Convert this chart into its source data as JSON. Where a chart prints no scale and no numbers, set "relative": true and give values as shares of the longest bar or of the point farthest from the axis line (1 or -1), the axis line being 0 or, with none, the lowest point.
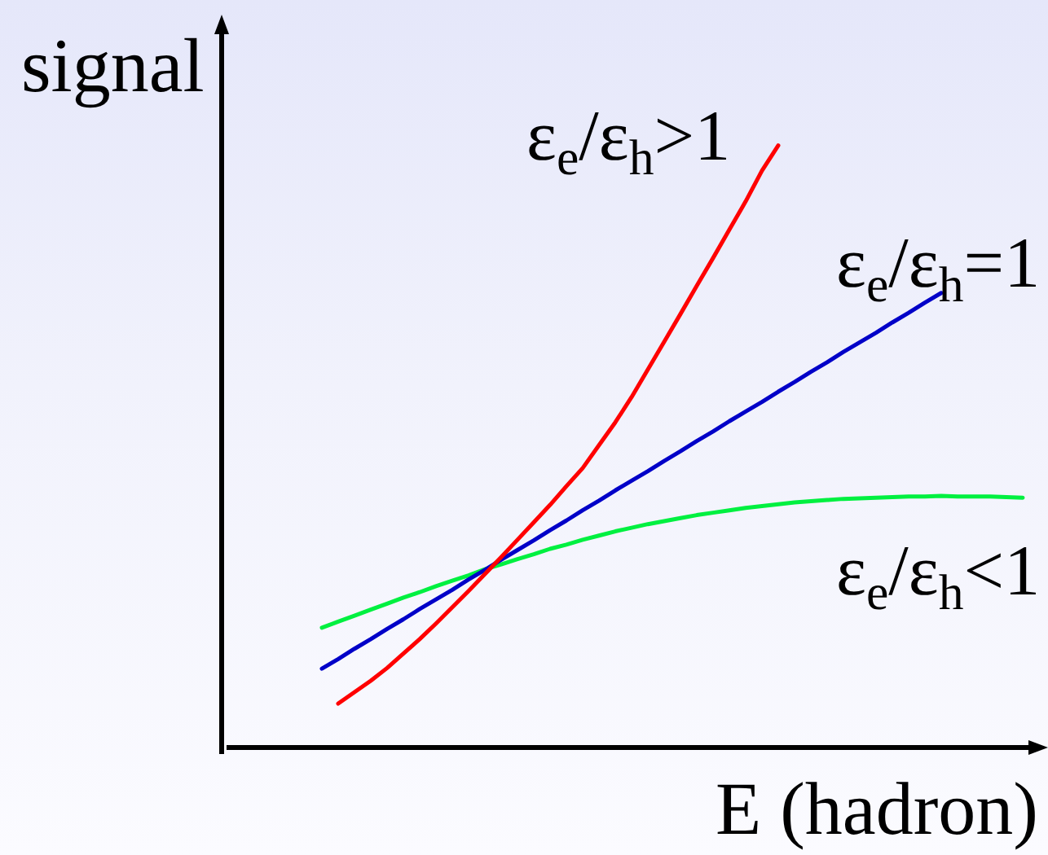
{
  "chart_data": {
    "type": "line",
    "xlabel": "E (hadron)",
    "ylabel": "signal",
    "relative": true,
    "marker": "none",
    "categories": [
      null,
      null,
      null,
      null,
      null,
      null,
      null,
      null,
      null,
      null,
      null,
      null,
      null,
      null,
      null,
      null,
      null,
      null,
      null,
      null,
      null,
      null,
      null,
      null,
      null,
      null,
      null,
      null,
      null,
      null,
      null,
      null,
      null,
      null,
      null,
      null,
      null,
      null,
      null,
      null,
      null,
      null,
      null,
      null
    ],
    "series": [
      {
        "name": "ε$_{e}$/ε$_{h}$>1",
        "color": "#ff0000",
        "values": [
          null,
          0.073,
          0.092,
          0.111,
          0.132,
          0.156,
          0.18,
          0.206,
          0.233,
          0.26,
          0.288,
          0.316,
          0.345,
          0.374,
          0.403,
          0.434,
          0.464,
          0.502,
          0.54,
          0.582,
          0.628,
          0.674,
          0.72,
          0.767,
          0.813,
          0.86,
          0.907,
          0.958,
          1,
          null,
          null,
          null,
          null,
          null,
          null,
          null,
          null,
          null,
          null,
          null,
          null,
          null,
          null,
          null
        ]
      },
      {
        "name": "ε$_{e}$/ε$_{h}$=1",
        "color": "#0000c8",
        "values": [
          0.131,
          0.147,
          0.164,
          0.18,
          0.197,
          0.213,
          0.23,
          0.246,
          0.262,
          0.279,
          0.295,
          0.312,
          0.328,
          0.344,
          0.361,
          0.377,
          0.394,
          0.41,
          0.427,
          0.443,
          0.459,
          0.476,
          0.492,
          0.509,
          0.525,
          0.542,
          0.558,
          0.574,
          0.591,
          0.607,
          0.624,
          0.64,
          0.657,
          0.673,
          0.689,
          0.706,
          0.722,
          0.739,
          0.755,
          null,
          null,
          null,
          null,
          null
        ]
      },
      {
        "name": "ε$_{e}$/ε$_{h}$<1",
        "color": "#00f040",
        "values": [
          0.199,
          0.209,
          0.219,
          0.229,
          0.239,
          0.249,
          0.258,
          0.268,
          0.277,
          0.286,
          0.296,
          0.304,
          0.313,
          0.321,
          0.33,
          0.337,
          0.345,
          0.352,
          0.359,
          0.365,
          0.371,
          0.376,
          0.381,
          0.386,
          0.39,
          0.394,
          0.398,
          0.401,
          0.404,
          0.407,
          0.409,
          0.411,
          0.413,
          0.414,
          0.415,
          0.416,
          0.417,
          0.417,
          0.418,
          0.417,
          0.417,
          0.417,
          0.416,
          0.415
        ]
      }
    ]
  }
}
